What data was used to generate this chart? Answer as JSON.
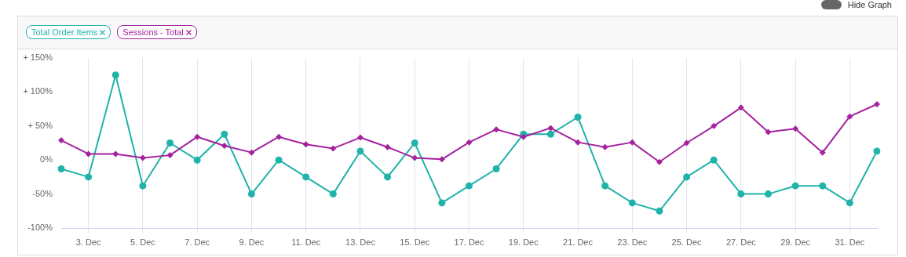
{
  "chart_data": {
    "type": "line",
    "categories": [
      null,
      "3. Dec",
      null,
      "5. Dec",
      null,
      "7. Dec",
      null,
      "9. Dec",
      null,
      "11. Dec",
      null,
      "13. Dec",
      null,
      "15. Dec",
      null,
      "17. Dec",
      null,
      "19. Dec",
      null,
      "21. Dec",
      null,
      "23. Dec",
      null,
      "25. Dec",
      null,
      "27. Dec",
      null,
      "29. Dec",
      null,
      "31. Dec",
      null
    ],
    "series": [
      {
        "name": "Total Order Items",
        "color": "#1fb3aa",
        "marker": "circle",
        "values": [
          -13,
          -25,
          125,
          -38,
          25,
          0,
          38,
          -50,
          0,
          -25,
          -50,
          13,
          -25,
          25,
          -63,
          -38,
          -13,
          38,
          38,
          63,
          -38,
          -63,
          -75,
          -25,
          0,
          -50,
          -50,
          -38,
          -38,
          -63,
          13
        ]
      },
      {
        "name": "Sessions - Total",
        "color": "#a4229e",
        "marker": "diamond",
        "values": [
          29,
          9,
          9,
          3,
          7,
          34,
          21,
          11,
          34,
          23,
          17,
          33,
          19,
          3,
          1,
          26,
          45,
          34,
          47,
          26,
          19,
          26,
          -3,
          25,
          50,
          77,
          41,
          46,
          11,
          64,
          82
        ]
      }
    ],
    "ylim": [
      -100,
      150
    ],
    "yticks": [
      {
        "value": -100,
        "label": "-100%"
      },
      {
        "value": -50,
        "label": "-50%"
      },
      {
        "value": 0,
        "label": "0%"
      },
      {
        "value": 50,
        "label": "+ 50%"
      },
      {
        "value": 100,
        "label": "+ 100%"
      },
      {
        "value": 150,
        "label": "+ 150%"
      }
    ],
    "grid": "x",
    "legend": "top left",
    "line_style": "solid",
    "annotations": [
      "Hide Graph"
    ]
  }
}
